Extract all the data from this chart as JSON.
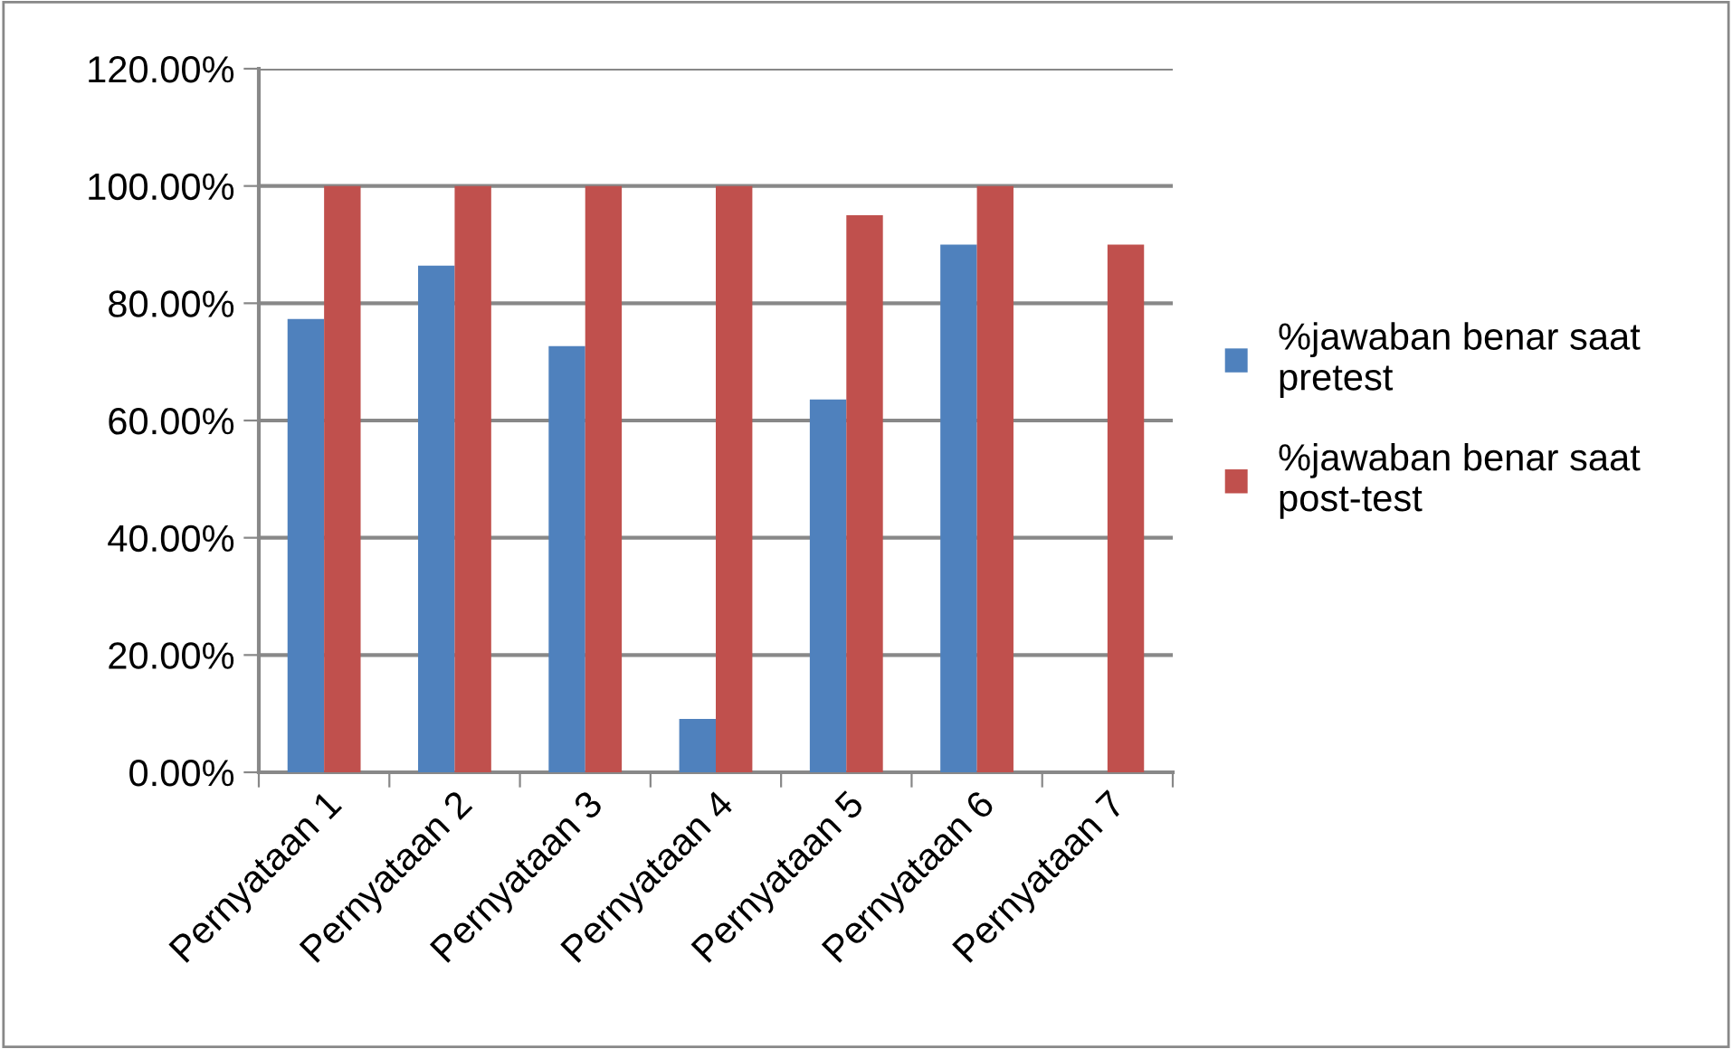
{
  "chart_data": {
    "type": "bar",
    "categories": [
      "Pernyataan 1",
      "Pernyataan 2",
      "Pernyataan 3",
      "Pernyataan 4",
      "Pernyataan 5",
      "Pernyataan 6",
      "Pernyataan 7"
    ],
    "series": [
      {
        "name": "%jawaban benar saat pretest",
        "color": "#4f81bd",
        "values": [
          77.3,
          86.4,
          72.7,
          9.1,
          63.6,
          90,
          0
        ]
      },
      {
        "name": "%jawaban benar saat post-test",
        "color": "#c0504d",
        "values": [
          100,
          100,
          100,
          100,
          95,
          100,
          90
        ]
      }
    ],
    "ylim": [
      0,
      120
    ],
    "yticks": [
      {
        "value": 0,
        "label": "0.00%"
      },
      {
        "value": 20,
        "label": "20.00%"
      },
      {
        "value": 40,
        "label": "40.00%"
      },
      {
        "value": 60,
        "label": "60.00%"
      },
      {
        "value": 80,
        "label": "80.00%"
      },
      {
        "value": 100,
        "label": "100.00%"
      },
      {
        "value": 120,
        "label": "120.00%"
      }
    ],
    "grid": "y",
    "legend": "right"
  }
}
